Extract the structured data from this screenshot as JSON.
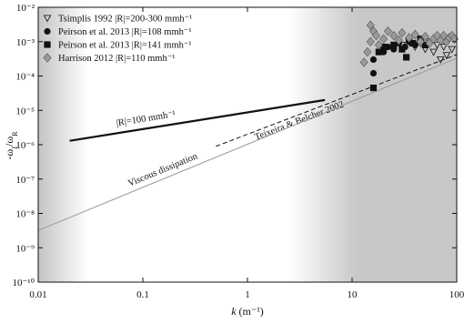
{
  "chart_data": {
    "type": "scatter",
    "xlabel": [
      "k",
      " (m⁻¹)"
    ],
    "ylabel": [
      "-ω",
      "I",
      "/ω",
      "R"
    ],
    "xscale": "log",
    "yscale": "log",
    "xlim": [
      0.01,
      100
    ],
    "ylim": [
      1e-10,
      0.01
    ],
    "xticks": [
      0.01,
      0.1,
      1,
      10,
      100
    ],
    "yticks": [
      {
        "value": 1e-10,
        "label": "10⁻¹⁰"
      },
      {
        "value": 1e-09,
        "label": "10⁻⁹"
      },
      {
        "value": 1e-08,
        "label": "10⁻⁸"
      },
      {
        "value": 1e-07,
        "label": "10⁻⁷"
      },
      {
        "value": 1e-06,
        "label": "10⁻⁶"
      },
      {
        "value": 1e-05,
        "label": "10⁻⁵"
      },
      {
        "value": 0.0001,
        "label": "10⁻⁴"
      },
      {
        "value": 0.001,
        "label": "10⁻³"
      },
      {
        "value": 0.01,
        "label": "10⁻²"
      }
    ],
    "legend": "upper left",
    "series": [
      {
        "name": "Tsimplis 1992 |R|=200-300 mmh⁻¹",
        "marker": "triangle-down-open",
        "color": "#222222",
        "x": [
          30,
          35,
          40,
          45,
          50,
          55,
          60,
          65,
          70,
          75,
          80,
          90
        ],
        "values": [
          0.0008,
          0.001,
          0.0007,
          0.0009,
          0.0006,
          0.001,
          0.0005,
          0.0008,
          0.0003,
          0.0007,
          0.0004,
          0.0006
        ]
      },
      {
        "name": "Peirson et al. 2013 |R|=108 mmh⁻¹",
        "marker": "circle",
        "color": "#111111",
        "x": [
          16,
          16,
          20,
          22,
          25,
          28,
          32,
          35,
          40,
          45
        ],
        "values": [
          0.00012,
          0.0003,
          0.0005,
          0.0007,
          0.0006,
          0.0009,
          0.0007,
          0.001,
          0.0008,
          0.0011
        ]
      },
      {
        "name": "Peirson et al. 2013 |R|=141 mmh⁻¹",
        "marker": "square",
        "color": "#111111",
        "x": [
          16,
          18,
          20,
          25,
          30,
          33,
          38,
          45,
          50
        ],
        "values": [
          4.5e-05,
          0.0005,
          0.0007,
          0.0008,
          0.0006,
          0.00035,
          0.0009,
          0.0012,
          0.0008
        ]
      },
      {
        "name": "Harrison 2012 |R|=110 mmh⁻¹",
        "marker": "diamond",
        "color": "#999999",
        "x": [
          13,
          14,
          15,
          15,
          16,
          17,
          18,
          20,
          22,
          25,
          28,
          30,
          35,
          40,
          45,
          50,
          55,
          60,
          65,
          70,
          75,
          80,
          85,
          90,
          95
        ],
        "values": [
          0.00025,
          0.0005,
          0.001,
          0.003,
          0.002,
          0.0015,
          0.0008,
          0.0012,
          0.002,
          0.0015,
          0.0011,
          0.0018,
          0.0013,
          0.0016,
          0.001,
          0.0014,
          0.0009,
          0.0012,
          0.0015,
          0.0011,
          0.0015,
          0.001,
          0.0013,
          0.0015,
          0.0012
        ]
      }
    ],
    "lines": [
      {
        "label": "|R|=100 mmh⁻¹",
        "x": [
          0.02,
          5.5
        ],
        "y": [
          1.3e-06,
          2e-05
        ],
        "color": "#111111",
        "width": 2.2,
        "dash": false
      },
      {
        "label": "Teixeira & Belcher 2002",
        "x": [
          0.5,
          100
        ],
        "y": [
          9e-07,
          0.00042
        ],
        "color": "#111111",
        "width": 1,
        "dash": true
      },
      {
        "label": "Viscous dissipation",
        "x": [
          0.01,
          100
        ],
        "y": [
          3.2e-09,
          0.00033
        ],
        "color": "#999999",
        "width": 1,
        "dash": false
      }
    ]
  }
}
